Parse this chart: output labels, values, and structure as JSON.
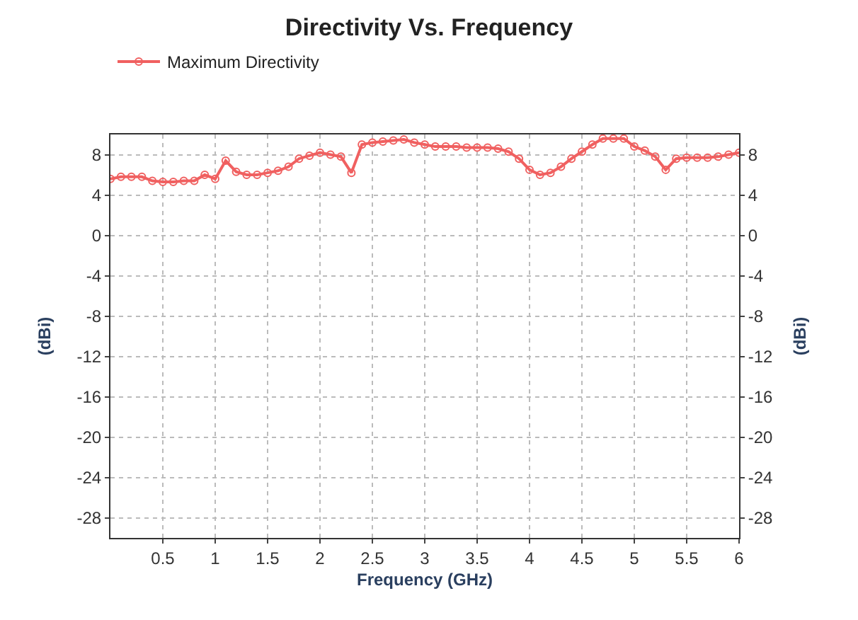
{
  "chart_data": {
    "type": "line",
    "title": "Directivity Vs. Frequency",
    "xlabel": "Frequency (GHz)",
    "ylabel": "(dBi)",
    "y2label": "(dBi)",
    "x": [
      0,
      0.1,
      0.2,
      0.3,
      0.4,
      0.5,
      0.6,
      0.7,
      0.8,
      0.9,
      1.0,
      1.1,
      1.2,
      1.3,
      1.4,
      1.5,
      1.6,
      1.7,
      1.8,
      1.9,
      2.0,
      2.1,
      2.2,
      2.3,
      2.4,
      2.5,
      2.6,
      2.7,
      2.8,
      2.9,
      3.0,
      3.1,
      3.2,
      3.3,
      3.4,
      3.5,
      3.6,
      3.7,
      3.8,
      3.9,
      4.0,
      4.1,
      4.2,
      4.3,
      4.4,
      4.5,
      4.6,
      4.7,
      4.8,
      4.9,
      5.0,
      5.1,
      5.2,
      5.3,
      5.4,
      5.5,
      5.6,
      5.7,
      5.8,
      5.9,
      6.0
    ],
    "series": [
      {
        "name": "Maximum Directivity",
        "color": "#f06060",
        "values": [
          5.6,
          5.8,
          5.8,
          5.8,
          5.4,
          5.3,
          5.3,
          5.4,
          5.4,
          6.0,
          5.6,
          7.4,
          6.3,
          6.0,
          6.0,
          6.2,
          6.4,
          6.8,
          7.6,
          7.9,
          8.2,
          8.0,
          7.8,
          6.2,
          9.0,
          9.2,
          9.3,
          9.4,
          9.5,
          9.2,
          9.0,
          8.8,
          8.8,
          8.8,
          8.7,
          8.7,
          8.7,
          8.6,
          8.3,
          7.6,
          6.5,
          6.0,
          6.2,
          6.8,
          7.6,
          8.3,
          9.0,
          9.6,
          9.6,
          9.6,
          8.8,
          8.4,
          7.8,
          6.5,
          7.6,
          7.7,
          7.7,
          7.7,
          7.8,
          8.0,
          8.2
        ]
      }
    ],
    "xlim": [
      0,
      6
    ],
    "xticks": [
      0.5,
      1,
      1.5,
      2,
      2.5,
      3,
      3.5,
      4,
      4.5,
      5,
      5.5,
      6
    ],
    "ylim": [
      -30,
      10
    ],
    "yticks": [
      8,
      4,
      0,
      -4,
      -8,
      -12,
      -16,
      -20,
      -24,
      -28
    ],
    "y2lim": [
      -30,
      10
    ],
    "y2ticks": [
      8,
      4,
      0,
      -4,
      -8,
      -12,
      -16,
      -20,
      -24,
      -28
    ],
    "grid": true,
    "legend": "top left",
    "marker": "circle",
    "line_style": "solid"
  }
}
